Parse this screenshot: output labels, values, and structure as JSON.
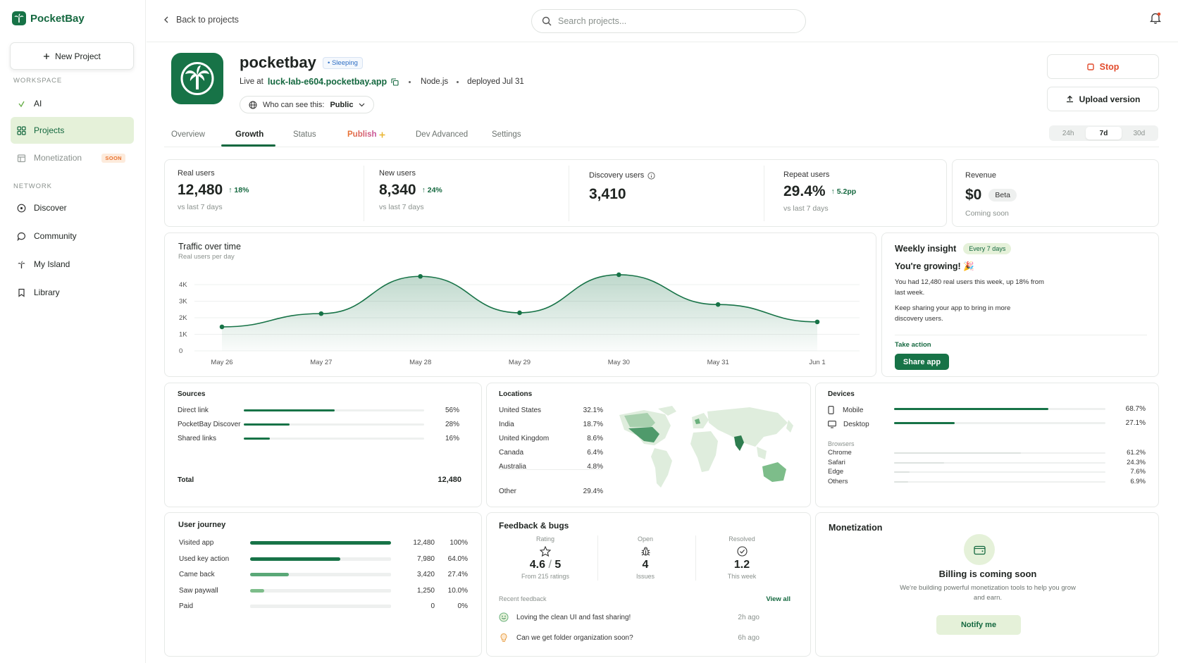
{
  "sidebar": {
    "brand": "PocketBay",
    "new_project": "New Project",
    "workspace_label": "WORKSPACE",
    "network_label": "NETWORK",
    "workspace_items": [
      {
        "label": "AI"
      },
      {
        "label": "Projects"
      },
      {
        "label": "Monetization",
        "badge": "SOON"
      }
    ],
    "network_items": [
      {
        "label": "Discover"
      },
      {
        "label": "Community"
      },
      {
        "label": "My Island"
      },
      {
        "label": "Library"
      }
    ]
  },
  "topbar": {
    "back": "Back to projects",
    "search_placeholder": "Search projects..."
  },
  "project": {
    "name": "pocketbay",
    "status": "Sleeping",
    "live_prefix": "Live at",
    "url": "luck-lab-e604.pocketbay.app",
    "runtime": "Node.js",
    "deployed": "deployed Jul 31",
    "visibility_label": "Who can see this:",
    "visibility_value": "Public",
    "stop": "Stop",
    "upload": "Upload version"
  },
  "tabs": [
    "Overview",
    "Growth",
    "Status",
    "Publish",
    "Dev Advanced",
    "Settings"
  ],
  "ranges": [
    "24h",
    "7d",
    "30d"
  ],
  "kpis": {
    "real": {
      "label": "Real users",
      "value": "12,480",
      "delta": "18%",
      "sub": "vs last 7 days"
    },
    "new": {
      "label": "New users",
      "value": "8,340",
      "delta": "24%",
      "sub": "vs last 7 days"
    },
    "discovery": {
      "label": "Discovery users",
      "value": "3,410"
    },
    "repeat": {
      "label": "Repeat users",
      "value": "29.4%",
      "delta": "5.2pp",
      "sub": "vs last 7 days"
    },
    "revenue": {
      "label": "Revenue",
      "value": "$0",
      "badge": "Beta",
      "sub": "Coming soon"
    }
  },
  "traffic": {
    "title": "Traffic over time",
    "subtitle": "Real users per day"
  },
  "chart_data": {
    "type": "area",
    "title": "Traffic over time",
    "subtitle": "Real users per day",
    "categories": [
      "May 26",
      "May 27",
      "May 28",
      "May 29",
      "May 30",
      "May 31",
      "Jun 1"
    ],
    "values": [
      1450,
      2250,
      4500,
      2300,
      4600,
      2800,
      1750
    ],
    "yticks": [
      "0",
      "1K",
      "2K",
      "3K",
      "4K"
    ],
    "ylim": [
      0,
      4800
    ],
    "grid": true,
    "accent": "#177347"
  },
  "insight": {
    "title": "Weekly insight",
    "badge": "Every 7 days",
    "headline": "You're growing! 🎉",
    "p1": "You had 12,480 real users this week, up 18% from last week.",
    "p2": "Keep sharing your app to bring in more discovery users.",
    "action_label": "Take action",
    "button": "Share app"
  },
  "sources": {
    "title": "Sources",
    "items": [
      {
        "label": "Direct link",
        "pct": "56%",
        "value": 0.56
      },
      {
        "label": "PocketBay Discover",
        "pct": "28%",
        "value": 0.28
      },
      {
        "label": "Shared links",
        "pct": "16%",
        "value": 0.16
      }
    ],
    "total_label": "Total",
    "total_value": "12,480"
  },
  "locations": {
    "title": "Locations",
    "items": [
      {
        "label": "United States",
        "pct": "32.1%"
      },
      {
        "label": "India",
        "pct": "18.7%"
      },
      {
        "label": "United Kingdom",
        "pct": "8.6%"
      },
      {
        "label": "Canada",
        "pct": "6.4%"
      },
      {
        "label": "Australia",
        "pct": "4.8%"
      }
    ],
    "other_label": "Other",
    "other_pct": "29.4%"
  },
  "devices": {
    "title": "Devices",
    "items": [
      {
        "label": "Mobile",
        "pct": "68.7%",
        "value": 0.687
      },
      {
        "label": "Desktop",
        "pct": "27.1%",
        "value": 0.271
      }
    ],
    "browsers_label": "Browsers",
    "browsers": [
      {
        "label": "Chrome",
        "pct": "61.2%",
        "value": 0.612
      },
      {
        "label": "Safari",
        "pct": "24.3%",
        "value": 0.243
      },
      {
        "label": "Edge",
        "pct": "7.6%",
        "value": 0.076
      },
      {
        "label": "Others",
        "pct": "6.9%",
        "value": 0.069
      }
    ]
  },
  "journey": {
    "title": "User journey",
    "items": [
      {
        "label": "Visited app",
        "count": "12,480",
        "pct": "100%",
        "value": 1.0
      },
      {
        "label": "Used key action",
        "count": "7,980",
        "pct": "64.0%",
        "value": 0.64
      },
      {
        "label": "Came back",
        "count": "3,420",
        "pct": "27.4%",
        "value": 0.274
      },
      {
        "label": "Saw paywall",
        "count": "1,250",
        "pct": "10.0%",
        "value": 0.1
      },
      {
        "label": "Paid",
        "count": "0",
        "pct": "0%",
        "value": 0
      }
    ]
  },
  "feedback": {
    "title": "Feedback & bugs",
    "rating_label": "Rating",
    "rating_value": "4.6",
    "rating_max": "5",
    "rating_sub": "From 215 ratings",
    "open_label": "Open",
    "open_value": "4",
    "open_sub": "Issues",
    "resolved_label": "Resolved",
    "resolved_value": "1.2",
    "resolved_sub": "This week",
    "recent_label": "Recent feedback",
    "view_all": "View all",
    "items": [
      {
        "text": "Loving the clean UI and fast sharing!",
        "time": "2h ago"
      },
      {
        "text": "Can we get folder organization soon?",
        "time": "6h ago"
      }
    ]
  },
  "monetization": {
    "title": "Monetization",
    "headline": "Billing is coming soon",
    "desc": "We're building powerful monetization tools to help you grow and earn.",
    "button": "Notify me"
  }
}
